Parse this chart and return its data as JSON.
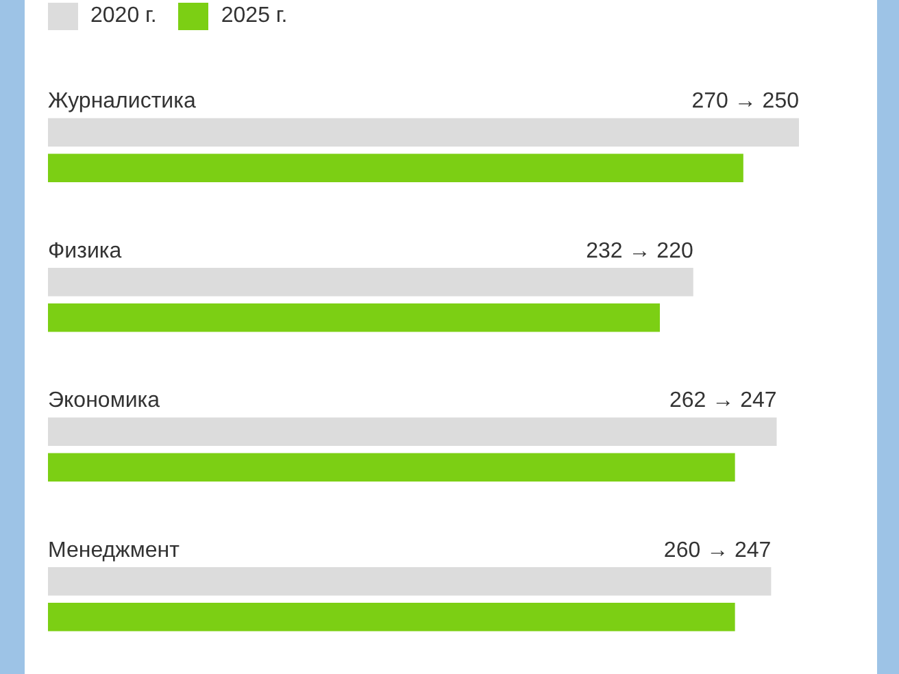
{
  "chart_data": {
    "type": "bar",
    "orientation": "horizontal",
    "categories": [
      "Журналистика",
      "Физика",
      "Экономика",
      "Менеджмент"
    ],
    "series": [
      {
        "name": "2020 г.",
        "color": "#dcdcdc",
        "values": [
          270,
          232,
          262,
          260
        ],
        "value_labels": [
          "270 → 250",
          "232 → 220",
          "262 → 247",
          "260 → 247"
        ]
      },
      {
        "name": "2025 г.",
        "color": "#7ccf14",
        "values": [
          250,
          220,
          247,
          247
        ]
      }
    ],
    "legend": "top left"
  }
}
